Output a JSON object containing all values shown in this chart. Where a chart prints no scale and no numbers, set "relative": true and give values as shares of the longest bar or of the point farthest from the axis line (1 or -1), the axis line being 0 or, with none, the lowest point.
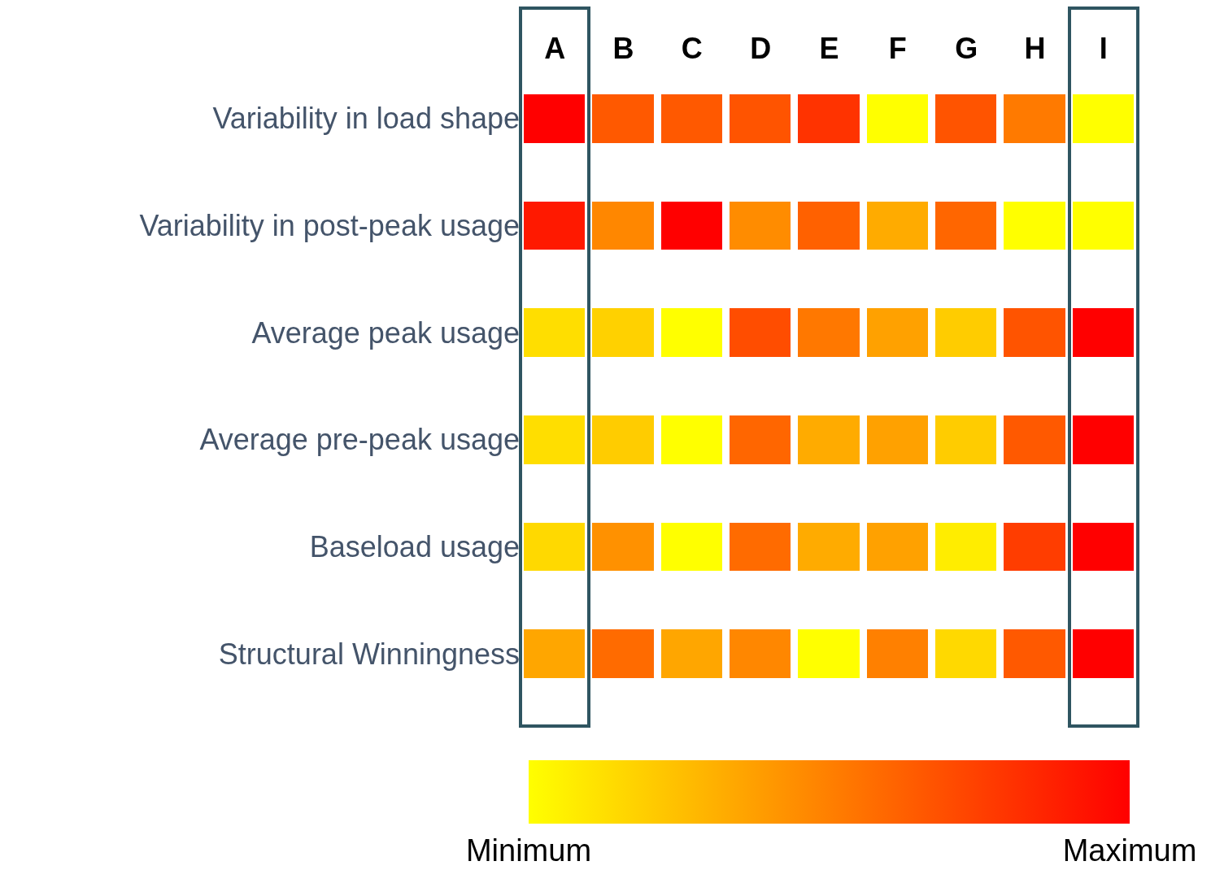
{
  "chart_data": {
    "type": "heatmap",
    "categories": [
      "A",
      "B",
      "C",
      "D",
      "E",
      "F",
      "G",
      "H",
      "I"
    ],
    "y_categories": [
      "Variability in load shape",
      "Variability in post-peak usage",
      "Average peak usage",
      "Average pre-peak usage",
      "Baseload usage",
      "Structural Winningness"
    ],
    "cells": [
      [
        1.0,
        0.65,
        0.65,
        0.67,
        0.8,
        0,
        0.67,
        0.52,
        0
      ],
      [
        0.9,
        0.47,
        1.0,
        0.45,
        0.62,
        0.33,
        0.6,
        0,
        0
      ],
      [
        0.13,
        0.18,
        0,
        0.7,
        0.53,
        0.37,
        0.2,
        0.67,
        1.0
      ],
      [
        0.13,
        0.2,
        0,
        0.6,
        0.33,
        0.37,
        0.2,
        0.65,
        1.0
      ],
      [
        0.15,
        0.43,
        0,
        0.58,
        0.33,
        0.37,
        0.07,
        0.76,
        1.0
      ],
      [
        0.35,
        0.58,
        0.35,
        0.47,
        0,
        0.5,
        0.15,
        0.65,
        1.0
      ]
    ],
    "relative": true,
    "cticks": [
      {
        "value": 0,
        "label": "Minimum"
      },
      {
        "value": 1,
        "label": "Maximum"
      }
    ],
    "colors": [
      "#ffff00",
      "#ff0000"
    ]
  }
}
